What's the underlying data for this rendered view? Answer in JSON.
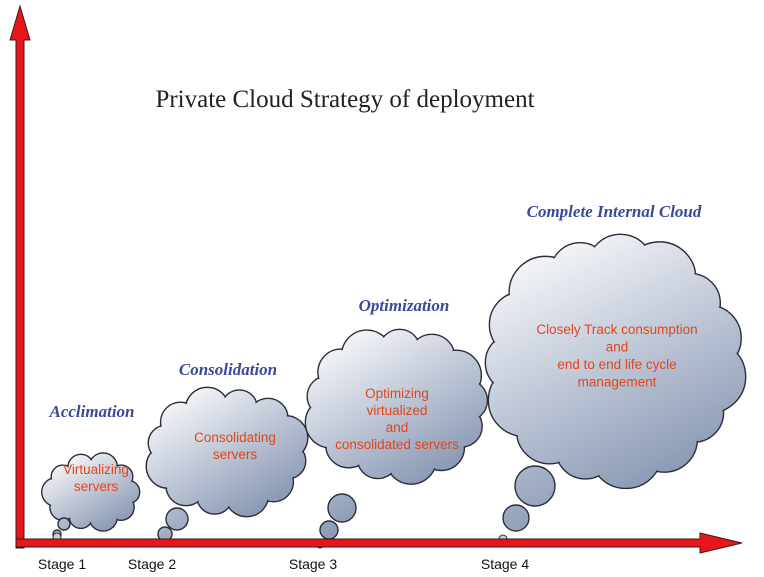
{
  "title": "Private Cloud Strategy of deployment",
  "stages": [
    {
      "stage": "Stage 1",
      "heading": "Acclimation",
      "text": [
        "Virtualizing",
        "servers"
      ]
    },
    {
      "stage": "Stage 2",
      "heading": "Consolidation",
      "text": [
        "Consolidating",
        "servers"
      ]
    },
    {
      "stage": "Stage 3",
      "heading": "Optimization",
      "text": [
        "Optimizing",
        "virtualized",
        "and",
        "consolidated servers"
      ]
    },
    {
      "stage": "Stage 4",
      "heading": "Complete Internal Cloud",
      "text": [
        "Closely Track consumption",
        "and",
        "end to end life cycle",
        "management"
      ]
    }
  ]
}
